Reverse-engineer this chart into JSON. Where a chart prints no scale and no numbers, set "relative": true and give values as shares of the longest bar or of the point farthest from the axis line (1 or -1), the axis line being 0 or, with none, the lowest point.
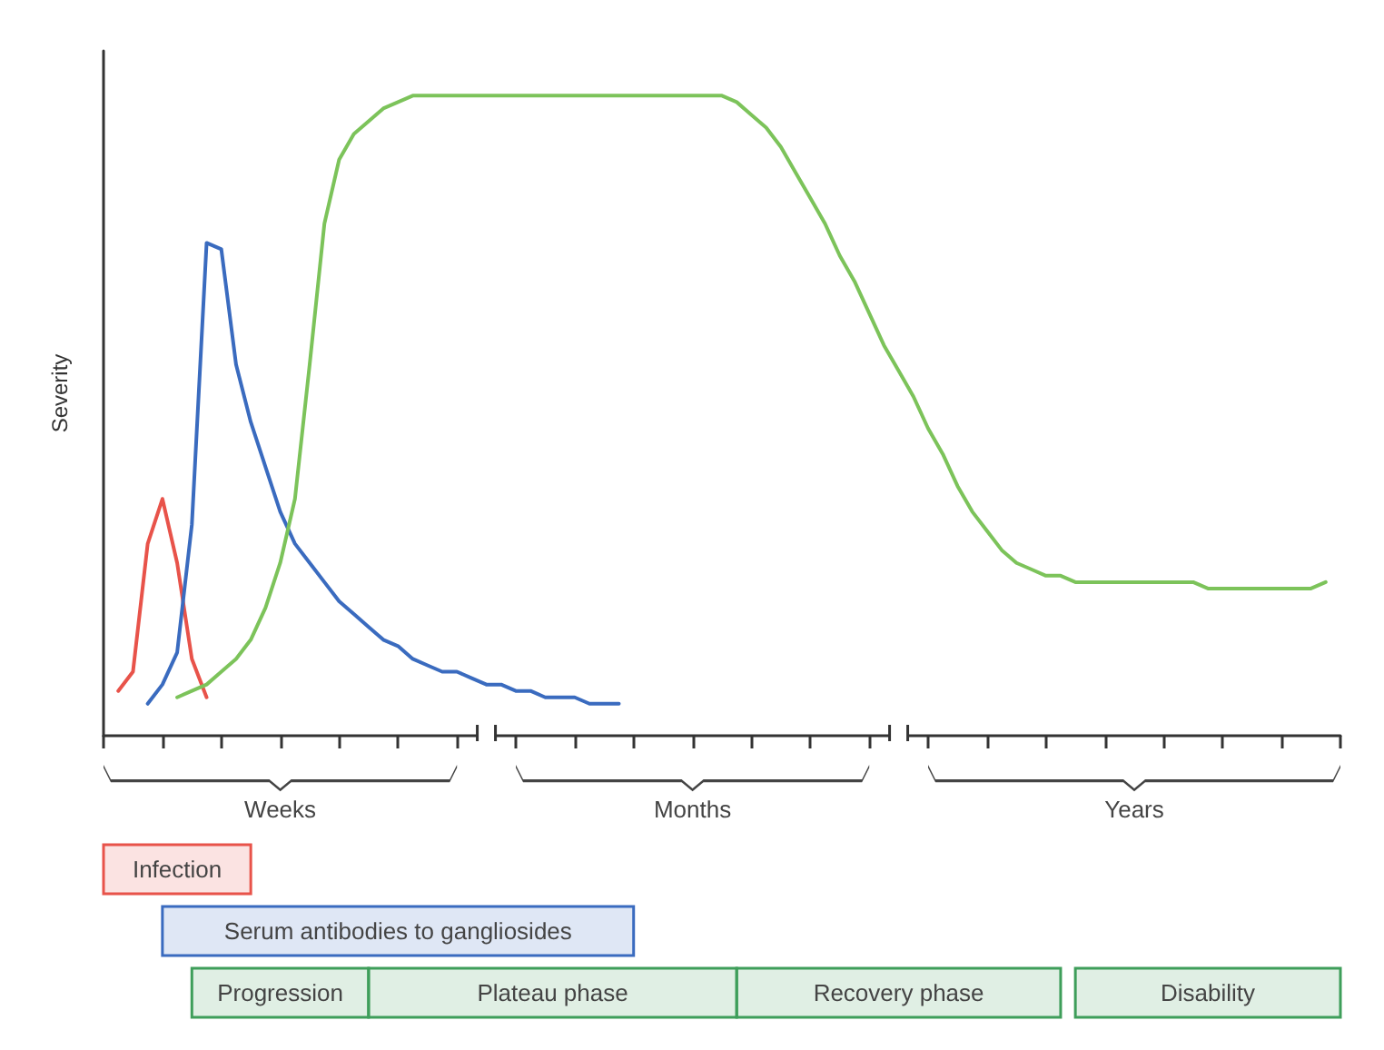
{
  "chart_data": {
    "type": "line",
    "relative": true,
    "ylabel": "Severity",
    "categories": [
      null,
      null,
      null,
      null,
      null,
      null,
      null,
      null,
      null,
      null,
      null,
      null,
      null,
      null,
      null,
      null,
      null,
      null,
      null,
      null,
      null,
      null,
      null,
      null,
      null,
      null,
      null,
      null,
      null,
      null,
      null,
      null,
      null,
      null,
      null,
      null,
      null,
      null,
      null,
      null,
      null,
      null,
      null,
      null,
      null,
      null,
      null,
      null,
      null,
      null,
      null,
      null,
      null,
      null,
      null,
      null,
      null,
      null,
      null,
      null,
      null,
      null,
      null,
      null,
      null,
      null,
      null,
      null,
      null,
      null,
      null,
      null,
      null,
      null,
      null,
      null,
      null,
      null,
      null,
      null,
      null,
      null,
      null,
      null,
      null
    ],
    "grid": false,
    "marker": "none",
    "line_style": "solid",
    "series": [
      {
        "color": "#e8534a",
        "values": [
          null,
          0.07,
          0.1,
          0.3,
          0.37,
          0.27,
          0.12,
          0.06,
          null,
          null,
          null,
          null,
          null,
          null,
          null,
          null,
          null,
          null,
          null,
          null,
          null,
          null,
          null,
          null,
          null,
          null,
          null,
          null,
          null,
          null,
          null,
          null,
          null,
          null,
          null,
          null,
          null,
          null,
          null,
          null,
          null,
          null,
          null,
          null,
          null,
          null,
          null,
          null,
          null,
          null,
          null,
          null,
          null,
          null,
          null,
          null,
          null,
          null,
          null,
          null,
          null,
          null,
          null,
          null,
          null,
          null,
          null,
          null,
          null,
          null,
          null,
          null,
          null,
          null,
          null,
          null,
          null,
          null,
          null,
          null,
          null,
          null,
          null,
          null,
          null
        ]
      },
      {
        "color": "#3a6bbf",
        "values": [
          null,
          null,
          null,
          0.05,
          0.08,
          0.13,
          0.33,
          0.77,
          0.76,
          0.58,
          0.49,
          0.42,
          0.35,
          0.3,
          0.27,
          0.24,
          0.21,
          0.19,
          0.17,
          0.15,
          0.14,
          0.12,
          0.11,
          0.1,
          0.1,
          0.09,
          0.08,
          0.08,
          0.07,
          0.07,
          0.06,
          0.06,
          0.06,
          0.05,
          0.05,
          0.05,
          null,
          null,
          null,
          null,
          null,
          null,
          null,
          null,
          null,
          null,
          null,
          null,
          null,
          null,
          null,
          null,
          null,
          null,
          null,
          null,
          null,
          null,
          null,
          null,
          null,
          null,
          null,
          null,
          null,
          null,
          null,
          null,
          null,
          null,
          null,
          null,
          null,
          null,
          null,
          null,
          null,
          null,
          null,
          null,
          null,
          null,
          null,
          null,
          null
        ]
      },
      {
        "color": "#7cc35a",
        "values": [
          null,
          null,
          null,
          null,
          null,
          0.06,
          0.07,
          0.08,
          0.1,
          0.12,
          0.15,
          0.2,
          0.27,
          0.37,
          0.58,
          0.8,
          0.9,
          0.94,
          0.96,
          0.98,
          0.99,
          1,
          1,
          1,
          1,
          1,
          1,
          1,
          1,
          1,
          1,
          1,
          1,
          1,
          1,
          1,
          1,
          1,
          1,
          1,
          1,
          1,
          1,
          0.99,
          0.97,
          0.95,
          0.92,
          0.88,
          0.84,
          0.8,
          0.75,
          0.71,
          0.66,
          0.61,
          0.57,
          0.53,
          0.48,
          0.44,
          0.39,
          0.35,
          0.32,
          0.29,
          0.27,
          0.26,
          0.25,
          0.25,
          0.24,
          0.24,
          0.24,
          0.24,
          0.24,
          0.24,
          0.24,
          0.24,
          0.24,
          0.23,
          0.23,
          0.23,
          0.23,
          0.23,
          0.23,
          0.23,
          0.23,
          0.24,
          null
        ]
      }
    ],
    "annotations": [
      "Weeks",
      "Months",
      "Years",
      "Infection",
      "Serum antibodies to gangliosides",
      "Progression",
      "Plateau phase",
      "Recovery phase",
      "Disability"
    ]
  }
}
